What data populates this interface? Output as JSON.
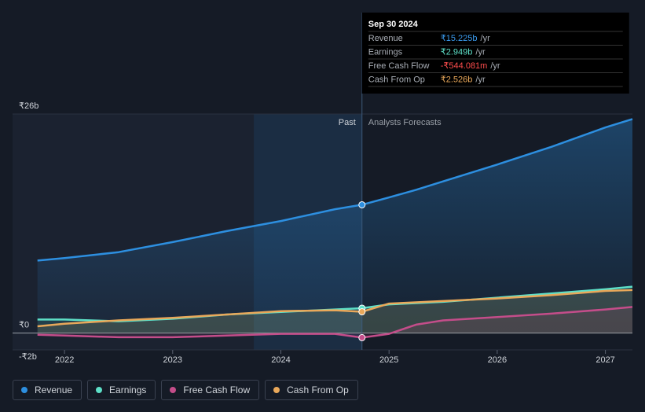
{
  "chart_data": {
    "type": "line",
    "x": [
      2021.75,
      2022,
      2022.5,
      2023,
      2023.5,
      2024,
      2024.5,
      2024.75,
      2025,
      2025.25,
      2025.5,
      2026,
      2026.5,
      2027,
      2027.25
    ],
    "series": [
      {
        "name": "Revenue",
        "color": "#2d8fe0",
        "values": [
          8.6,
          8.9,
          9.6,
          10.8,
          12.1,
          13.3,
          14.7,
          15.225,
          16.1,
          17.0,
          18.0,
          20.0,
          22.1,
          24.4,
          25.4
        ]
      },
      {
        "name": "Earnings",
        "color": "#5ee0c8",
        "values": [
          1.6,
          1.6,
          1.4,
          1.7,
          2.2,
          2.5,
          2.8,
          2.949,
          3.4,
          3.55,
          3.7,
          4.2,
          4.7,
          5.2,
          5.5
        ]
      },
      {
        "name": "Free Cash Flow",
        "color": "#c44d8a",
        "values": [
          -0.2,
          -0.3,
          -0.5,
          -0.5,
          -0.3,
          -0.1,
          -0.1,
          -0.544081,
          -0.1,
          1.0,
          1.5,
          1.9,
          2.3,
          2.8,
          3.1
        ]
      },
      {
        "name": "Cash From Op",
        "color": "#e9a85a",
        "values": [
          0.8,
          1.1,
          1.5,
          1.8,
          2.2,
          2.6,
          2.7,
          2.526,
          3.5,
          3.65,
          3.8,
          4.1,
          4.5,
          5.0,
          5.1
        ]
      }
    ],
    "xlim": [
      2021.52,
      2027.25
    ],
    "xticks": [
      2022,
      2023,
      2024,
      2025,
      2026,
      2027
    ],
    "ylim": [
      -2,
      26
    ],
    "yticks": [
      {
        "value": -2,
        "label": "-₹2b"
      },
      {
        "value": 0,
        "label": "₹0"
      },
      {
        "value": 26,
        "label": "₹26b"
      }
    ],
    "forecast_start": 2024.75,
    "highlight_from": 2023.75,
    "past_label": "Past",
    "forecast_label": "Analysts Forecasts",
    "tooltip": {
      "date": "Sep 30 2024",
      "rows": [
        {
          "label": "Revenue",
          "value": "₹15.225b",
          "unit": "/yr",
          "color": "#3b9cf0"
        },
        {
          "label": "Earnings",
          "value": "₹2.949b",
          "unit": "/yr",
          "color": "#5ee0c8"
        },
        {
          "label": "Free Cash Flow",
          "value": "-₹544.081m",
          "unit": "/yr",
          "color": "#ff4d4d"
        },
        {
          "label": "Cash From Op",
          "value": "₹2.526b",
          "unit": "/yr",
          "color": "#e9a85a"
        }
      ]
    }
  }
}
